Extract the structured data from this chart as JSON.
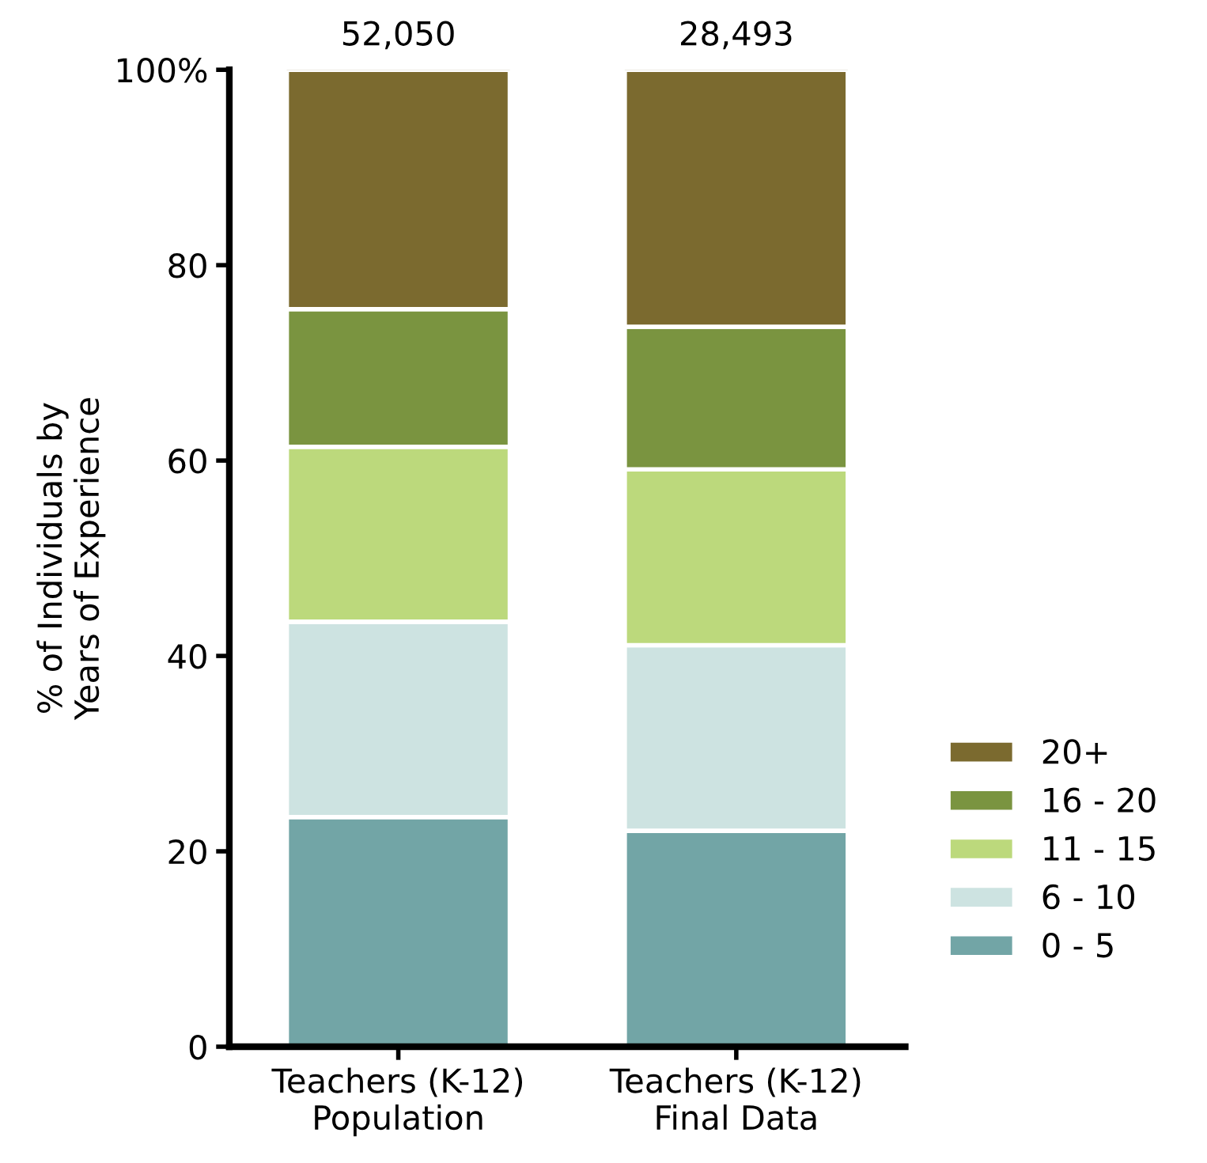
{
  "chart_data": {
    "type": "bar",
    "stacked": true,
    "ylabel": "% of Individuals by\nYears of Experience",
    "categories": [
      "Teachers (K-12)\nPopulation",
      "Teachers (K-12)\nFinal Data"
    ],
    "series": [
      {
        "name": "0 - 5",
        "color": "#72a5a6",
        "values": [
          23.5,
          22.1
        ]
      },
      {
        "name": "6 - 10",
        "color": "#cde3e1",
        "values": [
          20.0,
          19.0
        ]
      },
      {
        "name": "11 - 15",
        "color": "#bcd97c",
        "values": [
          17.9,
          18.0
        ]
      },
      {
        "name": "16 - 20",
        "color": "#7a9440",
        "values": [
          14.1,
          14.6
        ]
      },
      {
        "name": "20+",
        "color": "#7b6a2f",
        "values": [
          24.5,
          26.3
        ]
      }
    ],
    "annotations": [
      {
        "text": "52,050",
        "x": "Teachers (K-12)\nPopulation",
        "y": 100
      },
      {
        "text": "28,493",
        "x": "Teachers (K-12)\nFinal Data",
        "y": 100
      }
    ],
    "ylim": [
      0,
      100
    ],
    "yticks": [
      0,
      20,
      40,
      60,
      80,
      {
        "value": 100,
        "label": "100%"
      }
    ],
    "grid": false,
    "legend": "right"
  }
}
